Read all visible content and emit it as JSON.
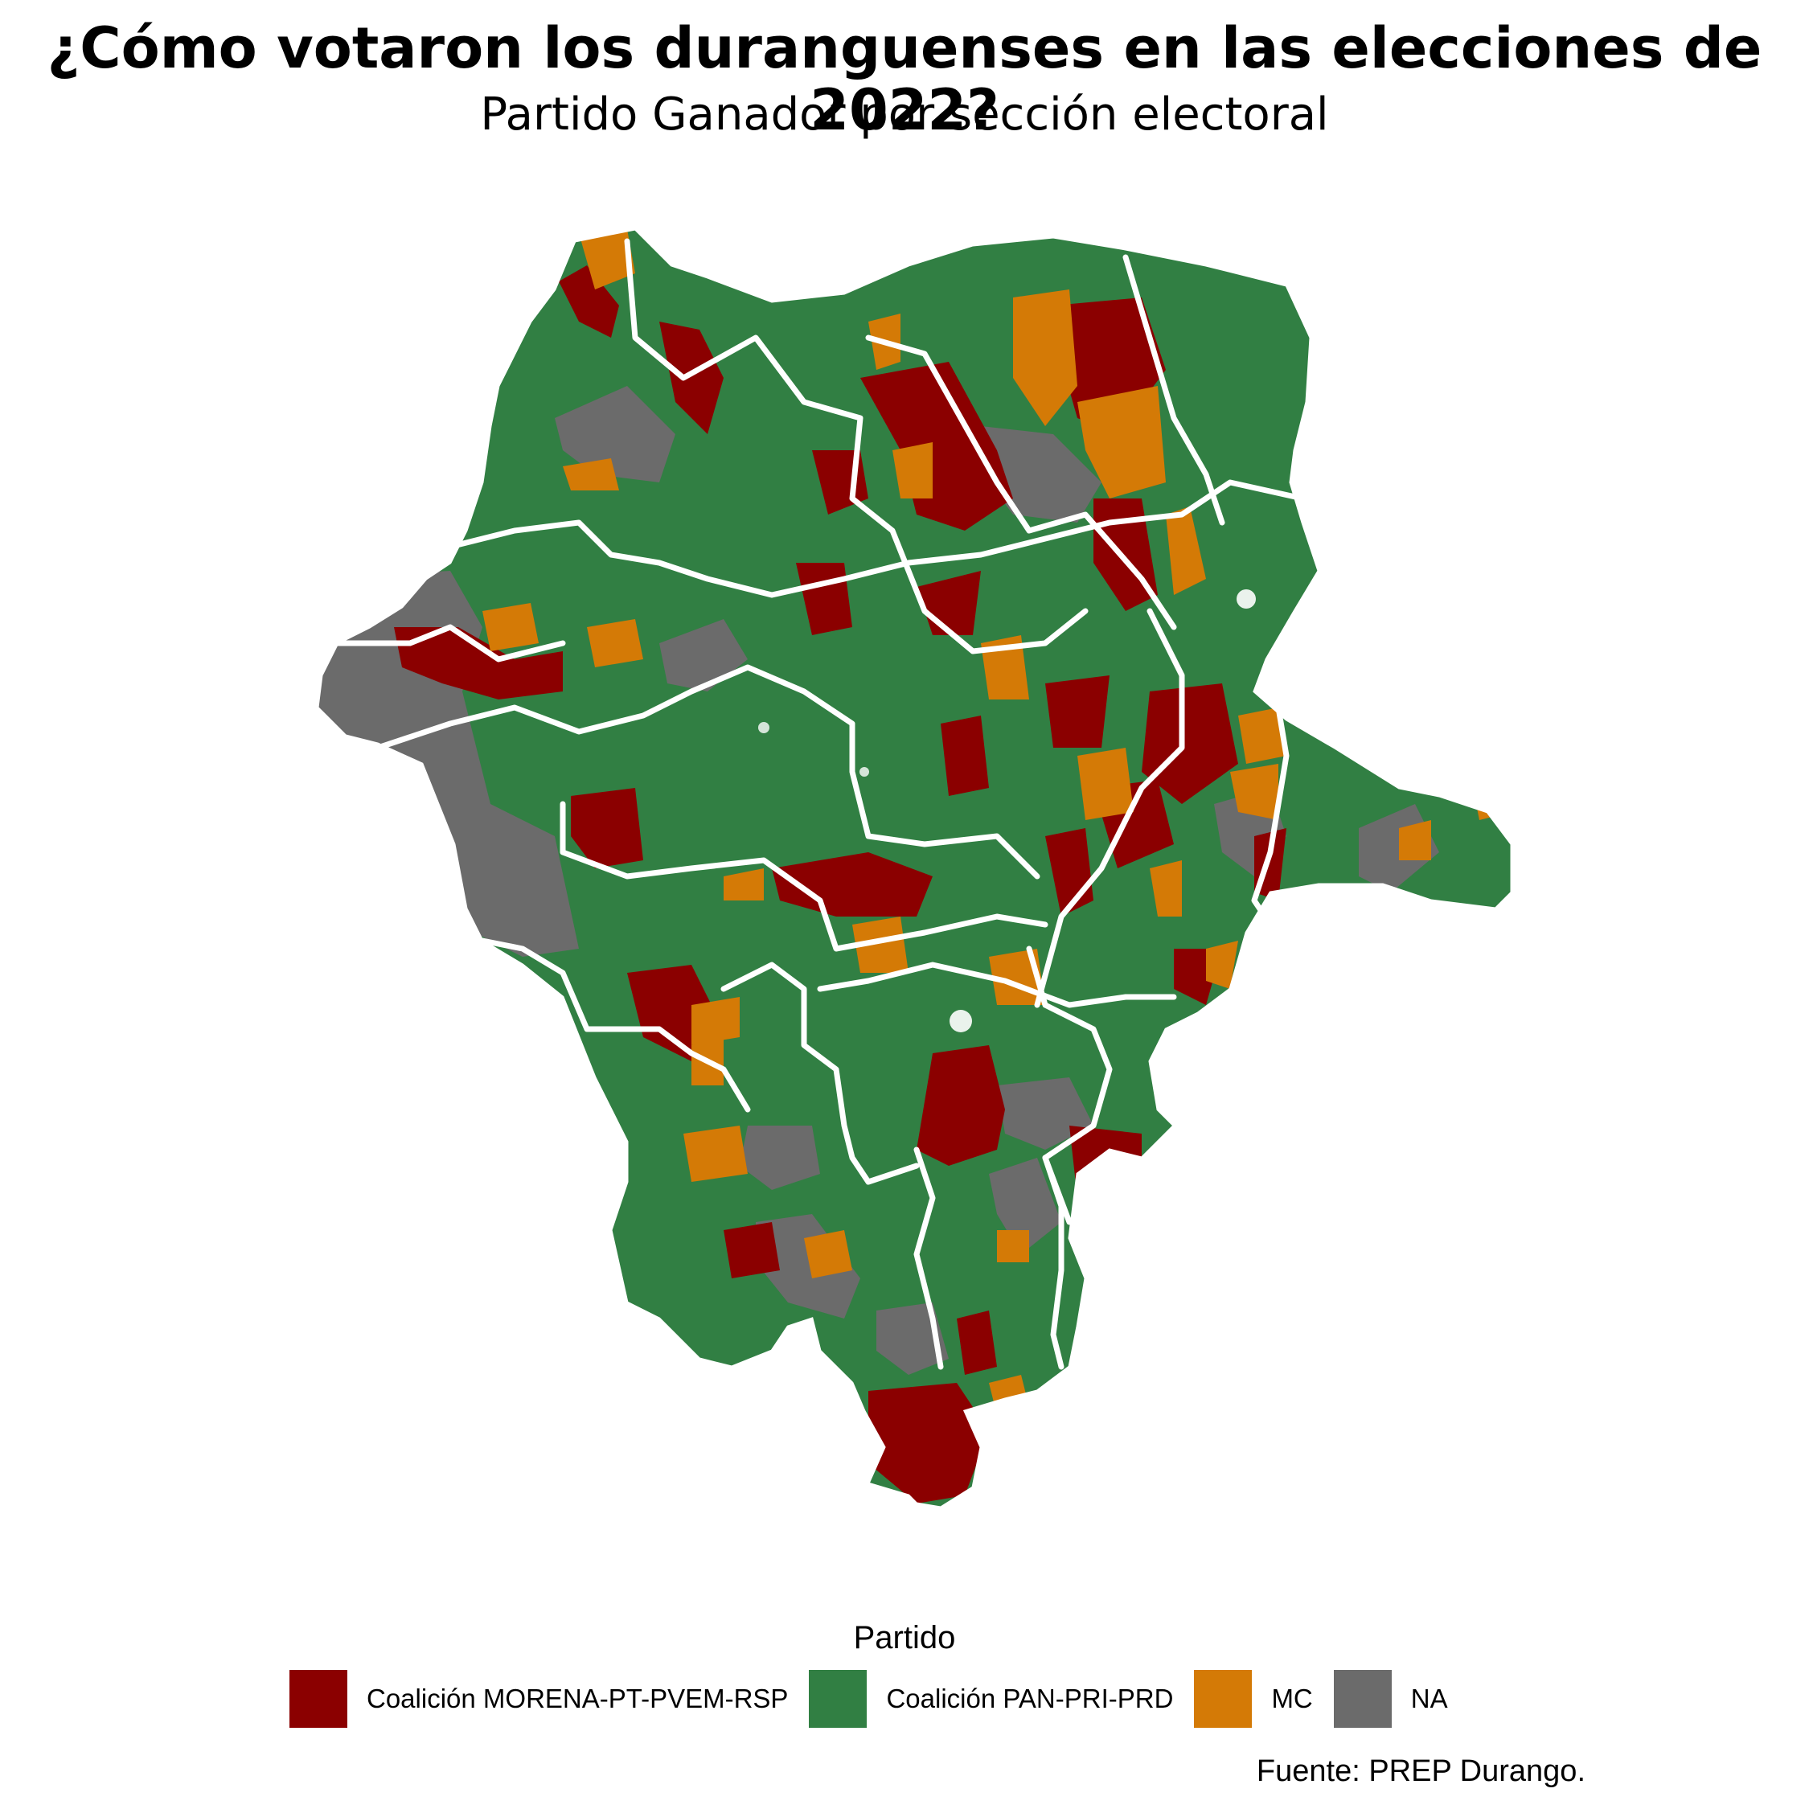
{
  "title": "¿Cómo votaron los duranguenses en las elecciones de 2022?",
  "subtitle": "Partido Ganador por sección electoral",
  "legend": {
    "title": "Partido",
    "items": [
      {
        "label": "Coalición MORENA-PT-PVEM-RSP",
        "color": "#8b0000"
      },
      {
        "label": "Coalición PAN-PRI-PRD",
        "color": "#317f43"
      },
      {
        "label": "MC",
        "color": "#d47a06"
      },
      {
        "label": "NA",
        "color": "#6b6b6b"
      }
    ]
  },
  "source": "Fuente: PREP Durango.",
  "colors": {
    "morena": "#8b0000",
    "pan_pri_prd": "#317f43",
    "mc": "#d47a06",
    "na": "#6b6b6b",
    "boundary": "#ffffff"
  }
}
